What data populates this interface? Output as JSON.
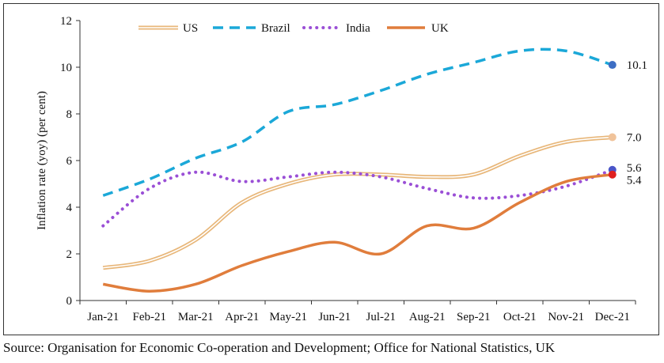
{
  "chart_data": {
    "type": "line",
    "title": "",
    "xlabel": "",
    "ylabel": "Inflation rate (yoy) (per cent)",
    "ylim": [
      0,
      12
    ],
    "yticks": [
      "0",
      "2",
      "4",
      "6",
      "8",
      "10",
      "12"
    ],
    "categories": [
      "Jan-21",
      "Feb-21",
      "Mar-21",
      "Apr-21",
      "May-21",
      "Jun-21",
      "Jul-21",
      "Aug-21",
      "Sep-21",
      "Oct-21",
      "Nov-21",
      "Dec-21"
    ],
    "grid": false,
    "legend_position": "top",
    "series": [
      {
        "name": "US",
        "color": "#e8b77a",
        "style": "double",
        "values": [
          1.4,
          1.7,
          2.6,
          4.2,
          5.0,
          5.4,
          5.4,
          5.3,
          5.4,
          6.2,
          6.8,
          7.0
        ],
        "end_label": "7.0",
        "end_marker_color": "#f0c39a"
      },
      {
        "name": "Brazil",
        "color": "#1ba8d8",
        "style": "dashed",
        "values": [
          4.5,
          5.2,
          6.1,
          6.8,
          8.1,
          8.4,
          9.0,
          9.7,
          10.2,
          10.7,
          10.7,
          10.1
        ],
        "end_label": "10.1",
        "end_marker_color": "#3d6ec4"
      },
      {
        "name": "India",
        "color": "#9a4fd6",
        "style": "dotted",
        "values": [
          3.2,
          4.8,
          5.5,
          5.1,
          5.3,
          5.5,
          5.3,
          4.8,
          4.4,
          4.5,
          4.9,
          5.6
        ],
        "end_label": "5.6",
        "end_marker_color": "#4a55c8"
      },
      {
        "name": "UK",
        "color": "#e07d3c",
        "style": "solid",
        "values": [
          0.7,
          0.4,
          0.7,
          1.5,
          2.1,
          2.5,
          2.0,
          3.2,
          3.1,
          4.2,
          5.1,
          5.4
        ],
        "end_label": "5.4",
        "end_marker_color": "#e02020"
      }
    ]
  },
  "source": "Source: Organisation for Economic Co-operation and Development; Office for National Statistics, UK"
}
